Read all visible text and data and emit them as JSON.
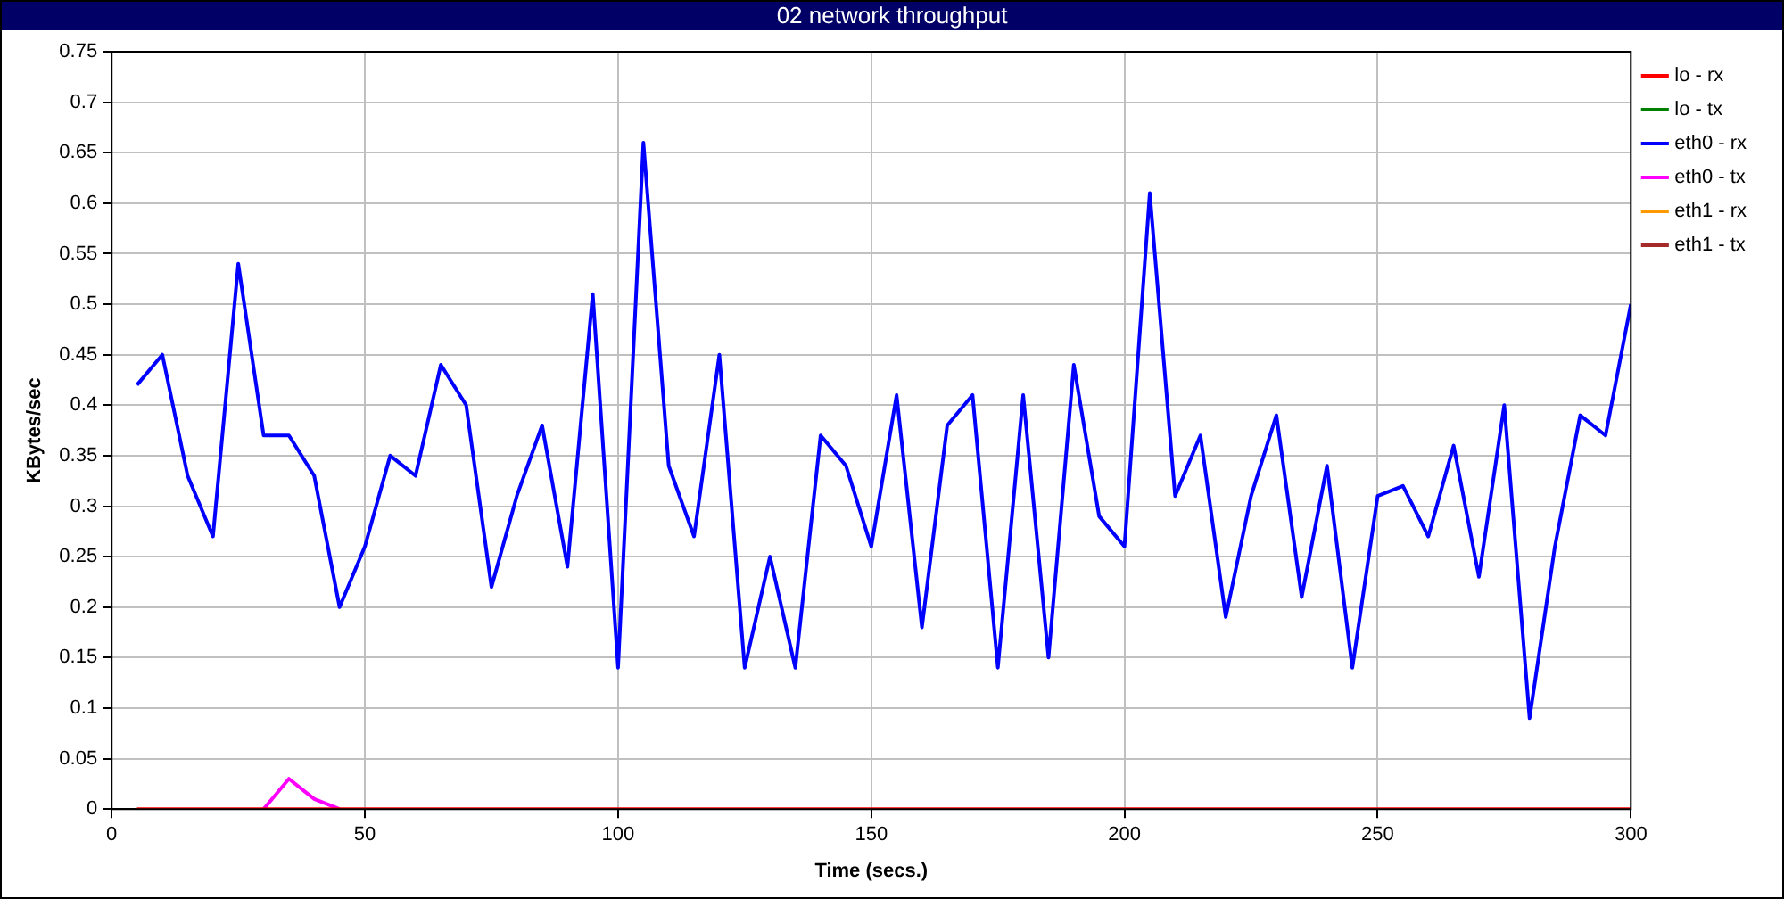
{
  "chart_data": {
    "type": "line",
    "title": "02 network throughput",
    "xlabel": "Time (secs.)",
    "ylabel": "KBytes/sec",
    "x": [
      5,
      10,
      15,
      20,
      25,
      30,
      35,
      40,
      45,
      50,
      55,
      60,
      65,
      70,
      75,
      80,
      85,
      90,
      95,
      100,
      105,
      110,
      115,
      120,
      125,
      130,
      135,
      140,
      145,
      150,
      155,
      160,
      165,
      170,
      175,
      180,
      185,
      190,
      195,
      200,
      205,
      210,
      215,
      220,
      225,
      230,
      235,
      240,
      245,
      250,
      255,
      260,
      265,
      270,
      275,
      280,
      285,
      290,
      295,
      300
    ],
    "series": [
      {
        "name": "lo - rx",
        "color": "#ff0000",
        "values": [
          0,
          0,
          0,
          0,
          0,
          0,
          0,
          0,
          0,
          0,
          0,
          0,
          0,
          0,
          0,
          0,
          0,
          0,
          0,
          0,
          0,
          0,
          0,
          0,
          0,
          0,
          0,
          0,
          0,
          0,
          0,
          0,
          0,
          0,
          0,
          0,
          0,
          0,
          0,
          0,
          0,
          0,
          0,
          0,
          0,
          0,
          0,
          0,
          0,
          0,
          0,
          0,
          0,
          0,
          0,
          0,
          0,
          0,
          0,
          0
        ]
      },
      {
        "name": "lo - tx",
        "color": "#008000",
        "values": [
          null,
          null,
          null,
          null,
          null,
          null,
          null,
          null,
          null,
          null,
          null,
          null,
          null,
          null,
          null,
          null,
          null,
          null,
          null,
          null,
          null,
          null,
          null,
          null,
          null,
          null,
          null,
          null,
          null,
          null,
          null,
          null,
          null,
          null,
          null,
          null,
          null,
          null,
          null,
          null,
          null,
          null,
          null,
          null,
          null,
          null,
          null,
          null,
          null,
          null,
          null,
          null,
          null,
          null,
          null,
          null,
          null,
          null,
          null,
          null
        ]
      },
      {
        "name": "eth0 - rx",
        "color": "#0000ff",
        "values": [
          0.42,
          0.45,
          0.33,
          0.27,
          0.54,
          0.37,
          0.37,
          0.33,
          0.2,
          0.26,
          0.35,
          0.33,
          0.44,
          0.4,
          0.22,
          0.31,
          0.38,
          0.24,
          0.51,
          0.14,
          0.66,
          0.34,
          0.27,
          0.45,
          0.14,
          0.25,
          0.14,
          0.37,
          0.34,
          0.26,
          0.41,
          0.18,
          0.38,
          0.41,
          0.14,
          0.41,
          0.15,
          0.44,
          0.29,
          0.26,
          0.61,
          0.31,
          0.37,
          0.19,
          0.31,
          0.39,
          0.21,
          0.34,
          0.14,
          0.31,
          0.32,
          0.27,
          0.36,
          0.23,
          0.4,
          0.09,
          0.26,
          0.39,
          0.37,
          0.5
        ]
      },
      {
        "name": "eth0 - tx",
        "color": "#ff00ff",
        "values": [
          null,
          null,
          null,
          null,
          null,
          0,
          0.03,
          0.01,
          0,
          null,
          null,
          null,
          null,
          null,
          null,
          null,
          null,
          null,
          null,
          null,
          null,
          null,
          null,
          null,
          null,
          null,
          null,
          null,
          null,
          null,
          null,
          null,
          null,
          null,
          null,
          null,
          null,
          null,
          null,
          null,
          null,
          null,
          null,
          null,
          null,
          null,
          null,
          null,
          null,
          null,
          null,
          null,
          null,
          null,
          null,
          null,
          null,
          null,
          null,
          null
        ]
      },
      {
        "name": "eth1 - rx",
        "color": "#ff9900",
        "values": [
          null,
          null,
          null,
          null,
          null,
          null,
          null,
          null,
          null,
          null,
          null,
          null,
          null,
          null,
          null,
          null,
          null,
          null,
          null,
          null,
          null,
          null,
          null,
          null,
          null,
          null,
          null,
          null,
          null,
          null,
          null,
          null,
          null,
          null,
          null,
          null,
          null,
          null,
          null,
          null,
          null,
          null,
          null,
          null,
          null,
          null,
          null,
          null,
          null,
          null,
          null,
          null,
          null,
          null,
          null,
          null,
          null,
          null,
          null,
          null
        ]
      },
      {
        "name": "eth1 - tx",
        "color": "#a52a2a",
        "values": [
          null,
          null,
          null,
          null,
          null,
          null,
          null,
          null,
          null,
          null,
          null,
          null,
          null,
          null,
          null,
          null,
          null,
          null,
          null,
          null,
          null,
          null,
          null,
          null,
          null,
          null,
          null,
          null,
          null,
          null,
          null,
          null,
          null,
          null,
          null,
          null,
          null,
          null,
          null,
          null,
          null,
          null,
          null,
          null,
          null,
          null,
          null,
          null,
          null,
          null,
          null,
          null,
          null,
          null,
          null,
          null,
          null,
          null,
          null,
          null
        ]
      }
    ],
    "xlim": [
      0,
      300
    ],
    "xticks": [
      0,
      50,
      100,
      150,
      200,
      250,
      300
    ],
    "ylim": [
      0,
      0.75
    ],
    "yticks": [
      0,
      0.05,
      0.1,
      0.15,
      0.2,
      0.25,
      0.3,
      0.35,
      0.4,
      0.45,
      0.5,
      0.55,
      0.6,
      0.65,
      0.7,
      0.75
    ],
    "grid": true,
    "legend": "right",
    "marker": "none",
    "line_style": "solid"
  }
}
